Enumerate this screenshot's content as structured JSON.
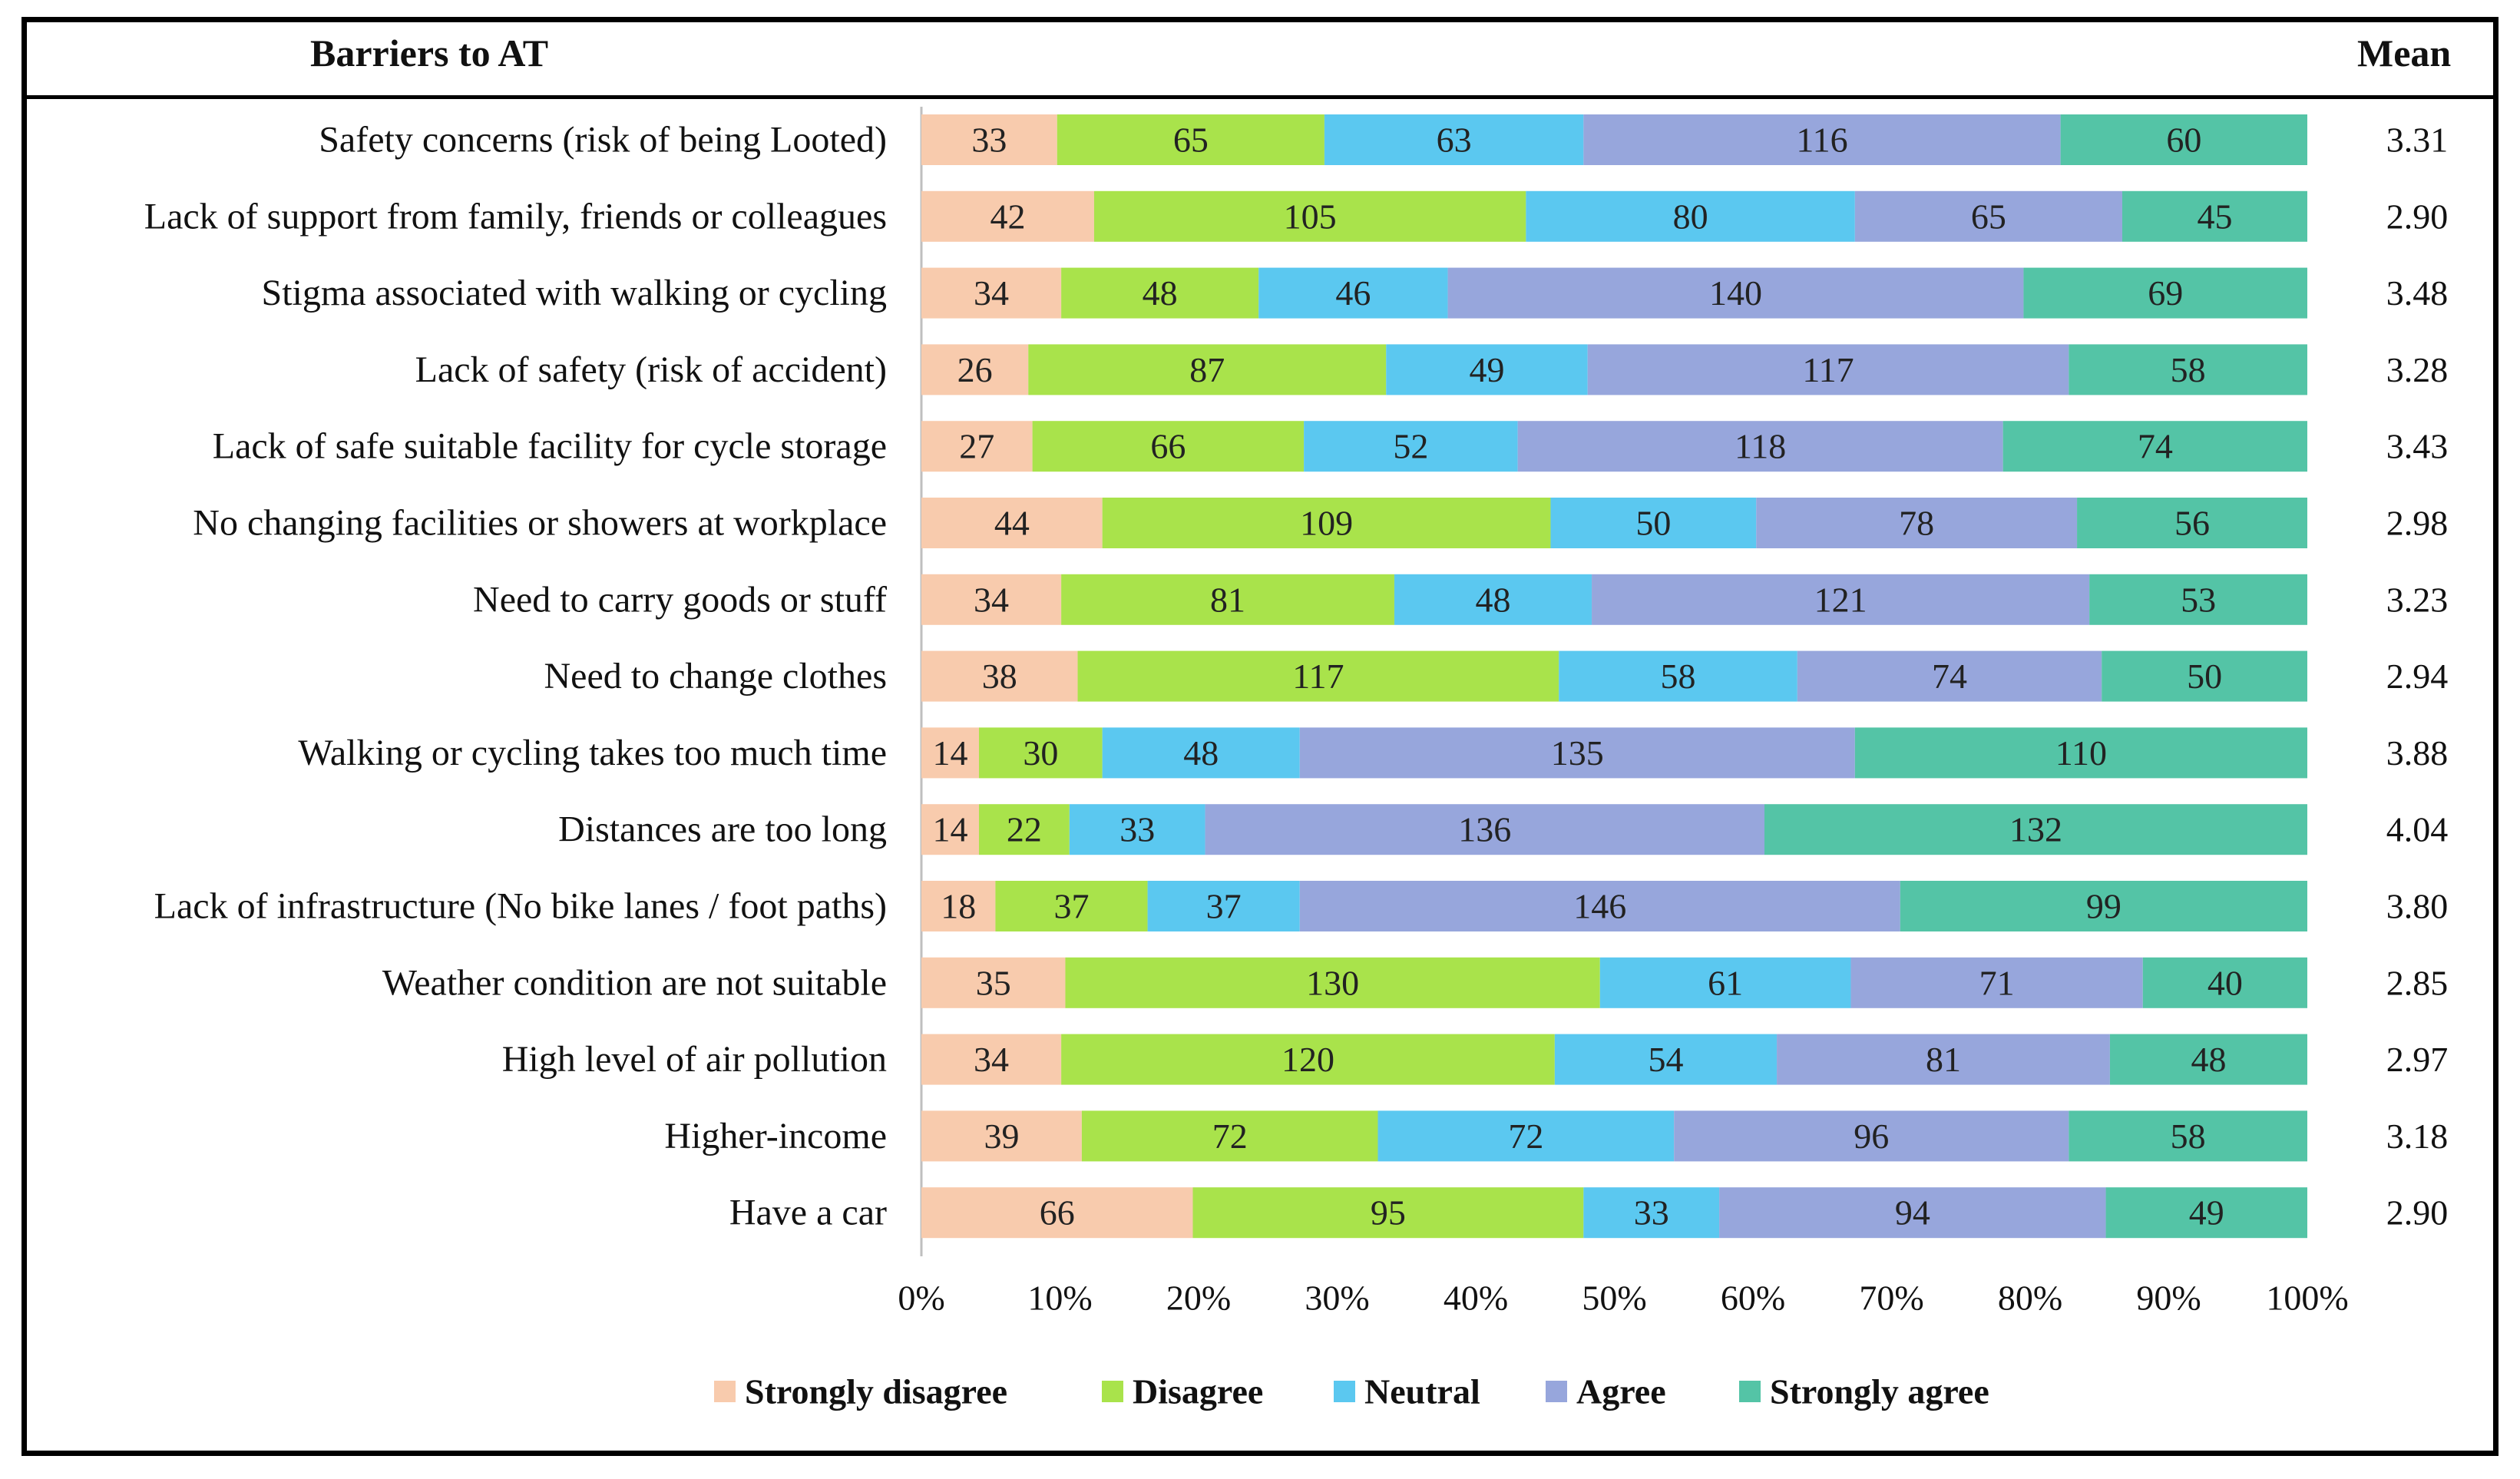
{
  "header": {
    "title": "Barriers to AT",
    "mean_label": "Mean"
  },
  "chart_data": {
    "type": "bar",
    "orientation": "horizontal",
    "stacked": "percent",
    "categories": [
      "Safety concerns (risk of being Looted)",
      "Lack of support from family, friends or colleagues",
      "Stigma associated with walking or cycling",
      "Lack of safety (risk of accident)",
      "Lack of safe suitable facility for cycle storage",
      "No changing facilities or showers at workplace",
      "Need to carry goods or stuff",
      "Need to change clothes",
      "Walking or cycling takes too much time",
      "Distances are too long",
      "Lack of infrastructure (No bike lanes / foot paths)",
      "Weather condition are not suitable",
      "High level of air pollution",
      "Higher-income",
      "Have a car"
    ],
    "series": [
      {
        "name": "Strongly disagree",
        "color": "#f8cbad",
        "values": [
          33,
          42,
          34,
          26,
          27,
          44,
          34,
          38,
          14,
          14,
          18,
          35,
          34,
          39,
          66
        ]
      },
      {
        "name": "Disagree",
        "color": "#a9e34b",
        "values": [
          65,
          105,
          48,
          87,
          66,
          109,
          81,
          117,
          30,
          22,
          37,
          130,
          120,
          72,
          95
        ]
      },
      {
        "name": "Neutral",
        "color": "#5bc8f0",
        "values": [
          63,
          80,
          46,
          49,
          52,
          50,
          48,
          58,
          48,
          33,
          37,
          61,
          54,
          72,
          33
        ]
      },
      {
        "name": "Agree",
        "color": "#97a6dc",
        "values": [
          116,
          65,
          140,
          117,
          118,
          78,
          121,
          74,
          135,
          136,
          146,
          71,
          81,
          96,
          94
        ]
      },
      {
        "name": "Strongly agree",
        "color": "#54c4a6",
        "values": [
          60,
          45,
          69,
          58,
          74,
          56,
          53,
          50,
          110,
          132,
          99,
          40,
          48,
          58,
          49
        ]
      }
    ],
    "means": [
      "3.31",
      "2.90",
      "3.48",
      "3.28",
      "3.43",
      "2.98",
      "3.23",
      "2.94",
      "3.88",
      "4.04",
      "3.80",
      "2.85",
      "2.97",
      "3.18",
      "2.90"
    ],
    "x_ticks": [
      "0%",
      "10%",
      "20%",
      "30%",
      "40%",
      "50%",
      "60%",
      "70%",
      "80%",
      "90%",
      "100%"
    ],
    "xlim": [
      0,
      100
    ],
    "legend": "bottom"
  }
}
